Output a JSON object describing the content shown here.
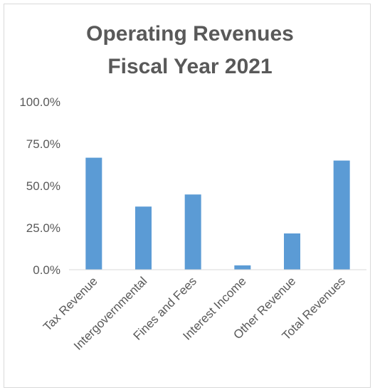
{
  "chart_data": {
    "type": "bar",
    "title": [
      "Operating Revenues",
      "Fiscal Year 2021"
    ],
    "xlabel": "",
    "ylabel": "",
    "categories": [
      "Tax Revenue",
      "Intergovernmental",
      "Fines and Fees",
      "Interest Income",
      "Other Revenue",
      "Total Revenues"
    ],
    "values": [
      66.7,
      37.6,
      44.8,
      2.6,
      21.6,
      65.0
    ],
    "ylim": [
      0,
      100
    ],
    "yticks": [
      "0.0%",
      "25.0%",
      "50.0%",
      "75.0%",
      "100.0%"
    ],
    "ytick_values": [
      0,
      25,
      50,
      75,
      100
    ],
    "grid": false,
    "legend": "none",
    "bar_color": "#5b9bd5",
    "axis_color": "#d9d9d9"
  }
}
